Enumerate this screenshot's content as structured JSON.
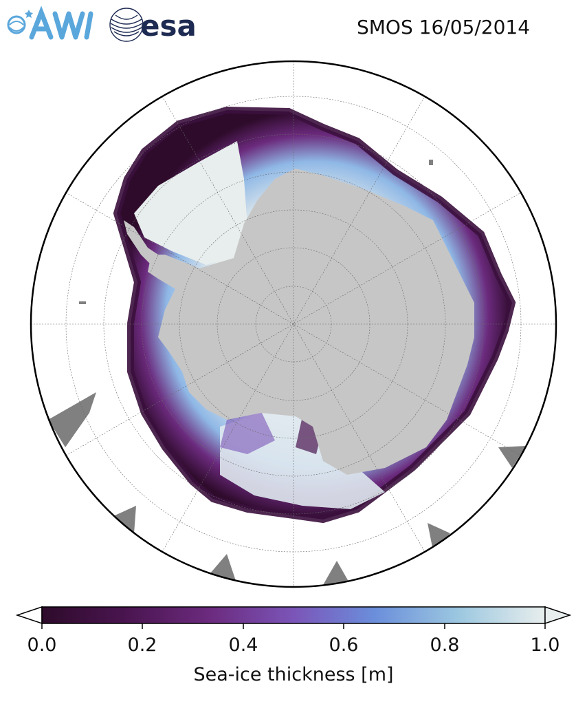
{
  "header": {
    "title": "SMOS 16/05/2014",
    "logos": [
      {
        "name": "awi-logo",
        "text": "AWI",
        "color": "#5aa7dc"
      },
      {
        "name": "esa-logo",
        "text": "esa",
        "color": "#1d2a52"
      }
    ]
  },
  "map": {
    "projection": "south-polar-stereographic",
    "land_color": "#c6c6c6",
    "masked_color": "#808080",
    "ocean_color": "#ffffff",
    "graticule": "dashed"
  },
  "colorbar": {
    "label": "Sea-ice thickness [m]",
    "min": 0.0,
    "max": 1.0,
    "ticks": [
      "0.0",
      "0.2",
      "0.4",
      "0.6",
      "0.8",
      "1.0"
    ],
    "colors": [
      "#2e0b2b",
      "#4a1550",
      "#6b2a7d",
      "#7b55b8",
      "#6b8edb",
      "#9dc8e0",
      "#e8eeed"
    ],
    "extend": "both"
  }
}
